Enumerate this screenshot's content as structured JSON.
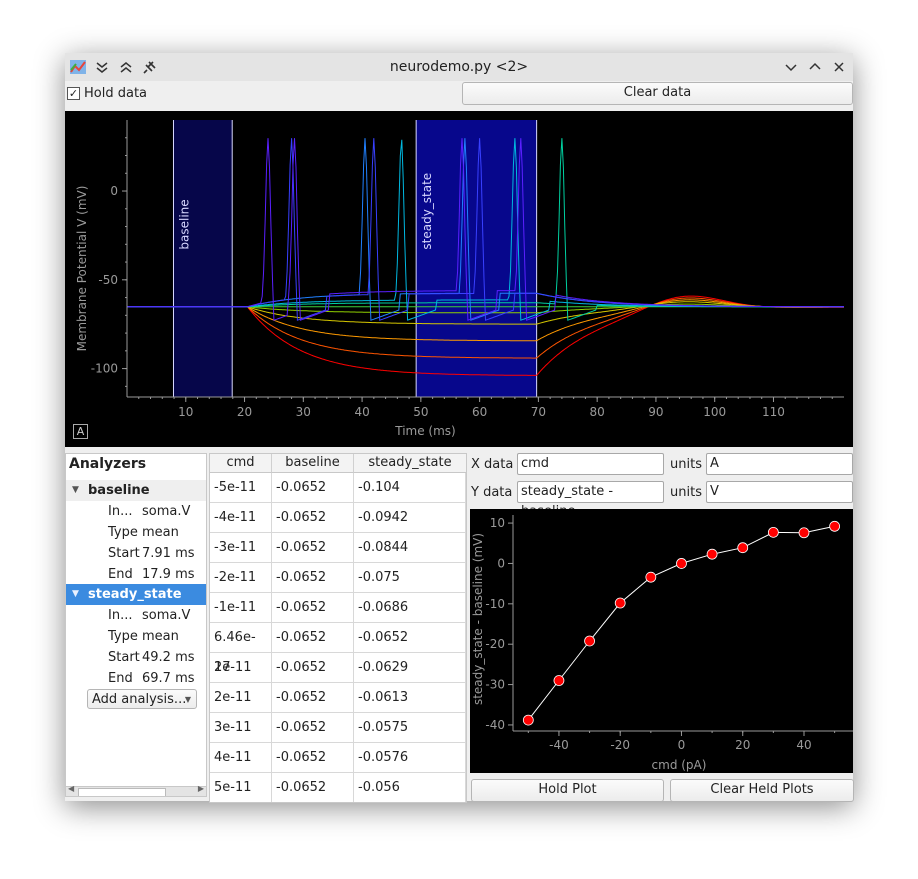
{
  "window": {
    "title": "neurodemo.py <2>",
    "hold_data_label": "Hold data",
    "hold_data_checked": "✓",
    "clear_data_label": "Clear data"
  },
  "trace_plot": {
    "ylabel": "Membrane Potential V (mV)",
    "xlabel": "Time (ms)",
    "yticks": [
      "0",
      "-50",
      "-100"
    ],
    "xticks": [
      "10",
      "20",
      "30",
      "40",
      "50",
      "60",
      "70",
      "80",
      "90",
      "100",
      "110"
    ],
    "regions": [
      {
        "label": "baseline",
        "start_ms": 7.91,
        "end_ms": 17.9
      },
      {
        "label": "steady_state",
        "start_ms": 49.2,
        "end_ms": 69.7
      }
    ],
    "auto_button": "A"
  },
  "analyzers": {
    "header": "Analyzers",
    "groups": [
      {
        "name": "baseline",
        "rows": [
          {
            "key": "In...",
            "value": "soma.V"
          },
          {
            "key": "Type",
            "value": "mean"
          },
          {
            "key": "Start",
            "value": "7.91 ms"
          },
          {
            "key": "End",
            "value": "17.9 ms"
          }
        ]
      },
      {
        "name": "steady_state",
        "rows": [
          {
            "key": "In...",
            "value": "soma.V"
          },
          {
            "key": "Type",
            "value": "mean"
          },
          {
            "key": "Start",
            "value": "49.2 ms"
          },
          {
            "key": "End",
            "value": "69.7 ms"
          }
        ]
      }
    ],
    "add_label": "Add analysis..."
  },
  "table": {
    "headers": [
      "cmd",
      "baseline",
      "steady_state"
    ],
    "rows": [
      [
        "-5e-11",
        "-0.0652",
        "-0.104"
      ],
      [
        "-4e-11",
        "-0.0652",
        "-0.0942"
      ],
      [
        "-3e-11",
        "-0.0652",
        "-0.0844"
      ],
      [
        "-2e-11",
        "-0.0652",
        "-0.075"
      ],
      [
        "-1e-11",
        "-0.0652",
        "-0.0686"
      ],
      [
        "6.46e-27",
        "-0.0652",
        "-0.0652"
      ],
      [
        "1e-11",
        "-0.0652",
        "-0.0629"
      ],
      [
        "2e-11",
        "-0.0652",
        "-0.0613"
      ],
      [
        "3e-11",
        "-0.0652",
        "-0.0575"
      ],
      [
        "4e-11",
        "-0.0652",
        "-0.0576"
      ],
      [
        "5e-11",
        "-0.0652",
        "-0.056"
      ]
    ]
  },
  "xy_panel": {
    "x_label": "X data",
    "x_value": "cmd",
    "x_units_label": "units",
    "x_units": "A",
    "y_label": "Y data",
    "y_value": "steady_state - baseline",
    "y_units_label": "units",
    "y_units": "V",
    "hold_plot": "Hold Plot",
    "clear_held": "Clear Held Plots"
  },
  "chart_data": {
    "type": "scatter",
    "xlabel": "cmd (pA)",
    "ylabel": "steady_state - baseline (mV)",
    "x": [
      -50,
      -40,
      -30,
      -20,
      -10,
      0,
      10,
      20,
      30,
      40,
      50
    ],
    "y": [
      -38.8,
      -29,
      -19.2,
      -9.8,
      -3.4,
      0,
      2.3,
      3.9,
      7.7,
      7.6,
      9.2
    ],
    "xticks": [
      "-40",
      "-20",
      "0",
      "20",
      "40"
    ],
    "yticks": [
      "10",
      "0",
      "-10",
      "-20",
      "-30",
      "-40"
    ],
    "xlim": [
      -55,
      56
    ],
    "ylim": [
      -41.5,
      12
    ],
    "marker_color": "#ff0000",
    "line_color": "#ffffff"
  }
}
